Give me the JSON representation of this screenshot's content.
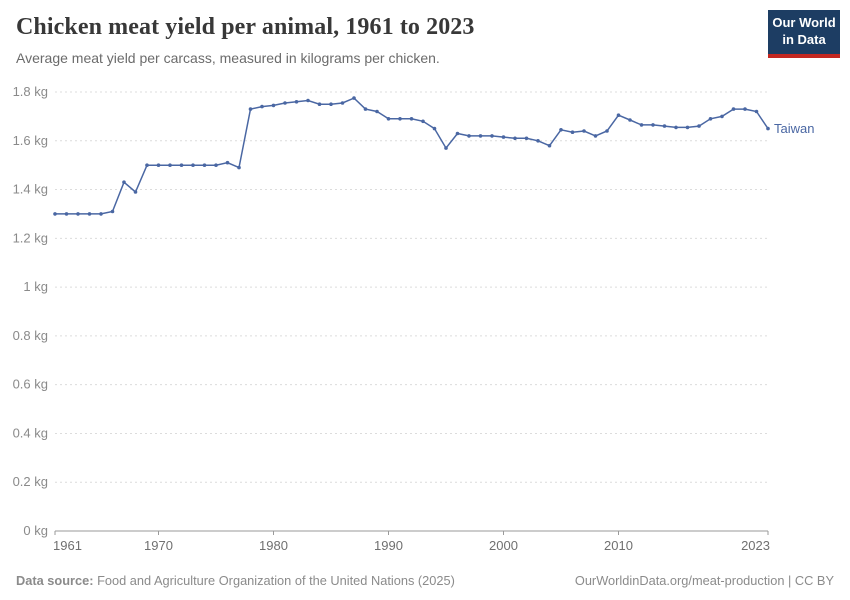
{
  "header": {
    "title": "Chicken meat yield per animal, 1961 to 2023",
    "subtitle": "Average meat yield per carcass, measured in kilograms per chicken.",
    "logo": {
      "line1": "Our World",
      "line2": "in Data",
      "bg_color": "#1d3d63",
      "accent_color": "#c32721"
    }
  },
  "chart_data": {
    "type": "line",
    "title": "Chicken meat yield per animal, 1961 to 2023",
    "xlabel": "",
    "ylabel": "",
    "xlim": [
      1961,
      2023
    ],
    "ylim": [
      0,
      1.8
    ],
    "grid": "horizontal-dashed",
    "legend_position": "end-of-line-label",
    "x_ticks": [
      1961,
      1970,
      1980,
      1990,
      2000,
      2010,
      2023
    ],
    "y_ticks": {
      "values": [
        0,
        0.2,
        0.4,
        0.6,
        0.8,
        1.0,
        1.2,
        1.4,
        1.6,
        1.8
      ],
      "labels": [
        "0 kg",
        "0.2 kg",
        "0.4 kg",
        "0.6 kg",
        "0.8 kg",
        "1 kg",
        "1.2 kg",
        "1.4 kg",
        "1.6 kg",
        "1.8 kg"
      ]
    },
    "x": [
      1961,
      1962,
      1963,
      1964,
      1965,
      1966,
      1967,
      1968,
      1969,
      1970,
      1971,
      1972,
      1973,
      1974,
      1975,
      1976,
      1977,
      1978,
      1979,
      1980,
      1981,
      1982,
      1983,
      1984,
      1985,
      1986,
      1987,
      1988,
      1989,
      1990,
      1991,
      1992,
      1993,
      1994,
      1995,
      1996,
      1997,
      1998,
      1999,
      2000,
      2001,
      2002,
      2003,
      2004,
      2005,
      2006,
      2007,
      2008,
      2009,
      2010,
      2011,
      2012,
      2013,
      2014,
      2015,
      2016,
      2017,
      2018,
      2019,
      2020,
      2021,
      2022,
      2023
    ],
    "series": [
      {
        "name": "Taiwan",
        "color": "#4a67a3",
        "values": [
          1.3,
          1.3,
          1.3,
          1.3,
          1.3,
          1.31,
          1.43,
          1.39,
          1.5,
          1.5,
          1.5,
          1.5,
          1.5,
          1.5,
          1.5,
          1.51,
          1.49,
          1.73,
          1.74,
          1.745,
          1.755,
          1.76,
          1.765,
          1.75,
          1.75,
          1.755,
          1.775,
          1.73,
          1.72,
          1.69,
          1.69,
          1.69,
          1.68,
          1.65,
          1.57,
          1.63,
          1.62,
          1.62,
          1.62,
          1.615,
          1.61,
          1.61,
          1.6,
          1.58,
          1.645,
          1.635,
          1.64,
          1.62,
          1.64,
          1.705,
          1.685,
          1.665,
          1.665,
          1.66,
          1.655,
          1.655,
          1.66,
          1.69,
          1.7,
          1.73,
          1.73,
          1.72,
          1.65
        ]
      }
    ],
    "style": {
      "grid_color": "#dcdcdc",
      "axis_color": "#9a9a9a",
      "y_label_color": "#8a8a8a",
      "x_label_color": "#707070"
    }
  },
  "footer": {
    "source_label": "Data source:",
    "source_text": " Food and Agriculture Organization of the United Nations (2025)",
    "link_text": "OurWorldinData.org/meat-production | CC BY"
  }
}
